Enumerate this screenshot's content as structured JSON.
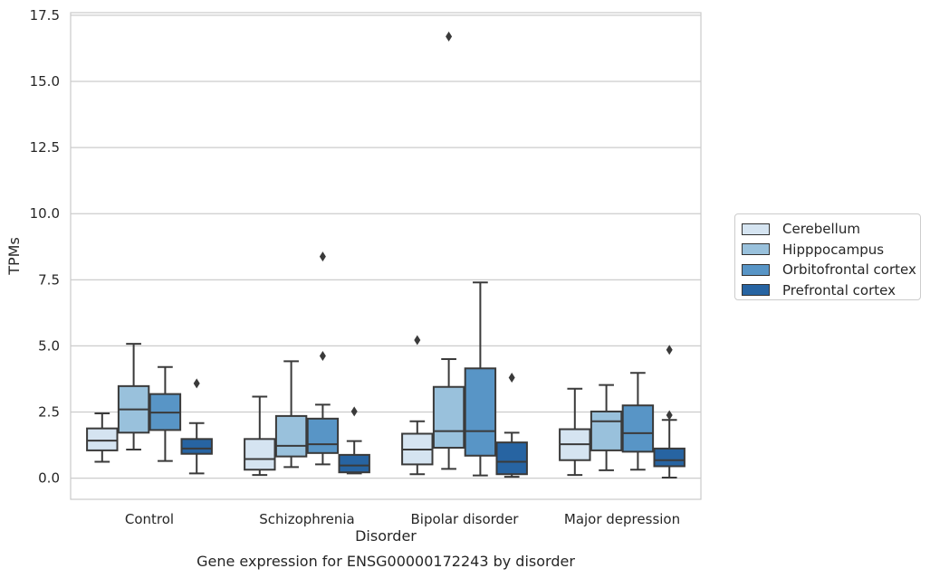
{
  "chart_data": {
    "type": "box",
    "title": "Gene expression for ENSG00000172243 by disorder",
    "xlabel": "Disorder",
    "ylabel": "TPMs",
    "categories": [
      "Control",
      "Schizophrenia",
      "Bipolar disorder",
      "Major depression"
    ],
    "ylim": [
      -0.8,
      17.6
    ],
    "yticks": [
      0.0,
      2.5,
      5.0,
      7.5,
      10.0,
      12.5,
      15.0,
      17.5
    ],
    "ytick_labels": [
      "0.0",
      "2.5",
      "5.0",
      "7.5",
      "10.0",
      "12.5",
      "15.0",
      "17.5"
    ],
    "grid": "horizontal",
    "legend_position": "center-right outside",
    "series": [
      {
        "name": "Cerebellum",
        "color": "#d5e4f1",
        "boxes": [
          {
            "whislo": 0.62,
            "q1": 1.05,
            "med": 1.42,
            "q3": 1.88,
            "whishi": 2.45,
            "fliers": []
          },
          {
            "whislo": 0.12,
            "q1": 0.32,
            "med": 0.72,
            "q3": 1.48,
            "whishi": 3.08,
            "fliers": []
          },
          {
            "whislo": 0.15,
            "q1": 0.52,
            "med": 1.08,
            "q3": 1.68,
            "whishi": 2.15,
            "fliers": [
              5.22
            ]
          },
          {
            "whislo": 0.12,
            "q1": 0.68,
            "med": 1.28,
            "q3": 1.85,
            "whishi": 3.38,
            "fliers": []
          }
        ]
      },
      {
        "name": "Hipppocampus",
        "color": "#99c1dc",
        "boxes": [
          {
            "whislo": 1.08,
            "q1": 1.72,
            "med": 2.6,
            "q3": 3.48,
            "whishi": 5.08,
            "fliers": []
          },
          {
            "whislo": 0.42,
            "q1": 0.82,
            "med": 1.22,
            "q3": 2.35,
            "whishi": 4.42,
            "fliers": []
          },
          {
            "whislo": 0.35,
            "q1": 1.15,
            "med": 1.78,
            "q3": 3.45,
            "whishi": 4.5,
            "fliers": [
              16.7
            ]
          },
          {
            "whislo": 0.3,
            "q1": 1.05,
            "med": 2.15,
            "q3": 2.52,
            "whishi": 3.52,
            "fliers": []
          }
        ]
      },
      {
        "name": "Orbitofrontal cortex",
        "color": "#5895c6",
        "boxes": [
          {
            "whislo": 0.65,
            "q1": 1.82,
            "med": 2.48,
            "q3": 3.18,
            "whishi": 4.2,
            "fliers": []
          },
          {
            "whislo": 0.52,
            "q1": 0.95,
            "med": 1.28,
            "q3": 2.25,
            "whishi": 2.78,
            "fliers": [
              4.62,
              8.38
            ]
          },
          {
            "whislo": 0.1,
            "q1": 0.85,
            "med": 1.78,
            "q3": 4.15,
            "whishi": 7.4,
            "fliers": []
          },
          {
            "whislo": 0.32,
            "q1": 1.0,
            "med": 1.7,
            "q3": 2.75,
            "whishi": 3.98,
            "fliers": []
          }
        ]
      },
      {
        "name": "Prefrontal cortex",
        "color": "#2764a2",
        "boxes": [
          {
            "whislo": 0.18,
            "q1": 0.92,
            "med": 1.12,
            "q3": 1.48,
            "whishi": 2.08,
            "fliers": [
              3.58
            ]
          },
          {
            "whislo": 0.18,
            "q1": 0.22,
            "med": 0.48,
            "q3": 0.88,
            "whishi": 1.4,
            "fliers": [
              2.52
            ]
          },
          {
            "whislo": 0.05,
            "q1": 0.15,
            "med": 0.62,
            "q3": 1.35,
            "whishi": 1.72,
            "fliers": [
              3.8
            ]
          },
          {
            "whislo": 0.02,
            "q1": 0.45,
            "med": 0.68,
            "q3": 1.12,
            "whishi": 2.2,
            "fliers": [
              2.38,
              4.85
            ]
          }
        ]
      }
    ]
  }
}
